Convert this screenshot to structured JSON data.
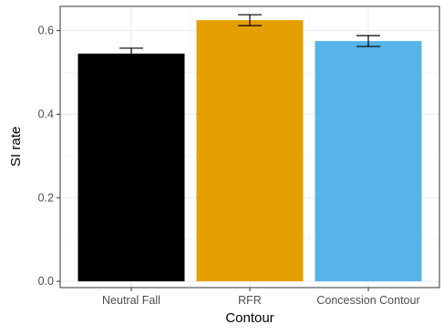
{
  "chart_data": {
    "type": "bar",
    "categories": [
      "Neutral Fall",
      "RFR",
      "Concession Contour"
    ],
    "values": [
      0.545,
      0.625,
      0.575
    ],
    "error_low": [
      0.532,
      0.612,
      0.562
    ],
    "error_high": [
      0.558,
      0.638,
      0.588
    ],
    "colors": [
      "#000000",
      "#E69F00",
      "#56B4E9"
    ],
    "xlabel": "Contour",
    "ylabel": "SI rate",
    "ylim": [
      -0.015,
      0.658
    ],
    "yticks": [
      0.0,
      0.2,
      0.4,
      0.6
    ],
    "ytick_labels": [
      "0.0",
      "0.2",
      "0.4",
      "0.6"
    ],
    "grid": true
  }
}
